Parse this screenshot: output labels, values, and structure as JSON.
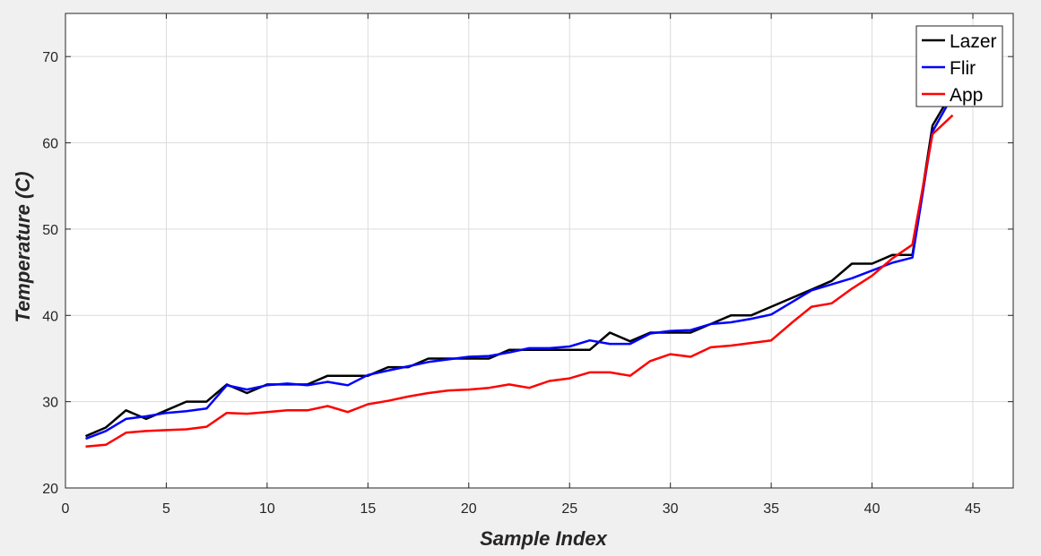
{
  "chart_data": {
    "type": "line",
    "title": "",
    "xlabel": "Sample Index",
    "ylabel": "Temperature (C)",
    "xlim": [
      0,
      47
    ],
    "ylim": [
      20,
      75
    ],
    "xticks": [
      0,
      5,
      10,
      15,
      20,
      25,
      30,
      35,
      40,
      45
    ],
    "yticks": [
      20,
      30,
      40,
      50,
      60,
      70
    ],
    "grid": true,
    "legend_position": "top-right",
    "x": [
      1,
      2,
      3,
      4,
      5,
      6,
      7,
      8,
      9,
      10,
      11,
      12,
      13,
      14,
      15,
      16,
      17,
      18,
      19,
      20,
      21,
      22,
      23,
      24,
      25,
      26,
      27,
      28,
      29,
      30,
      31,
      32,
      33,
      34,
      35,
      36,
      37,
      38,
      39,
      40,
      41,
      42,
      43,
      44
    ],
    "series": [
      {
        "name": "Lazer",
        "color": "#000000",
        "values": [
          26,
          27,
          29,
          28,
          29,
          30,
          30,
          32,
          31,
          32,
          32,
          32,
          33,
          33,
          33,
          34,
          34,
          35,
          35,
          35,
          35,
          36,
          36,
          36,
          36,
          36,
          38,
          37,
          38,
          38,
          38,
          39,
          40,
          40,
          41,
          42,
          43,
          44,
          46,
          46,
          47,
          47,
          62,
          66
        ]
      },
      {
        "name": "Flir",
        "color": "#0000ff",
        "values": [
          25.7,
          26.6,
          28,
          28.3,
          28.7,
          28.9,
          29.2,
          31.9,
          31.4,
          31.9,
          32.1,
          31.9,
          32.3,
          31.9,
          33.1,
          33.6,
          34.1,
          34.6,
          34.9,
          35.2,
          35.3,
          35.7,
          36.2,
          36.2,
          36.4,
          37.1,
          36.7,
          36.7,
          37.9,
          38.2,
          38.3,
          39,
          39.2,
          39.6,
          40.1,
          41.5,
          42.9,
          43.6,
          44.3,
          45.2,
          46.1,
          46.7,
          61.3,
          65.5
        ]
      },
      {
        "name": "App",
        "color": "#ff0000",
        "values": [
          24.8,
          25,
          26.4,
          26.6,
          26.7,
          26.8,
          27.1,
          28.7,
          28.6,
          28.8,
          29,
          29,
          29.5,
          28.8,
          29.7,
          30.1,
          30.6,
          31,
          31.3,
          31.4,
          31.6,
          32,
          31.6,
          32.4,
          32.7,
          33.4,
          33.4,
          33,
          34.7,
          35.5,
          35.2,
          36.3,
          36.5,
          36.8,
          37.1,
          39.1,
          41,
          41.4,
          43.1,
          44.6,
          46.6,
          48.2,
          61,
          63.2
        ]
      }
    ]
  }
}
